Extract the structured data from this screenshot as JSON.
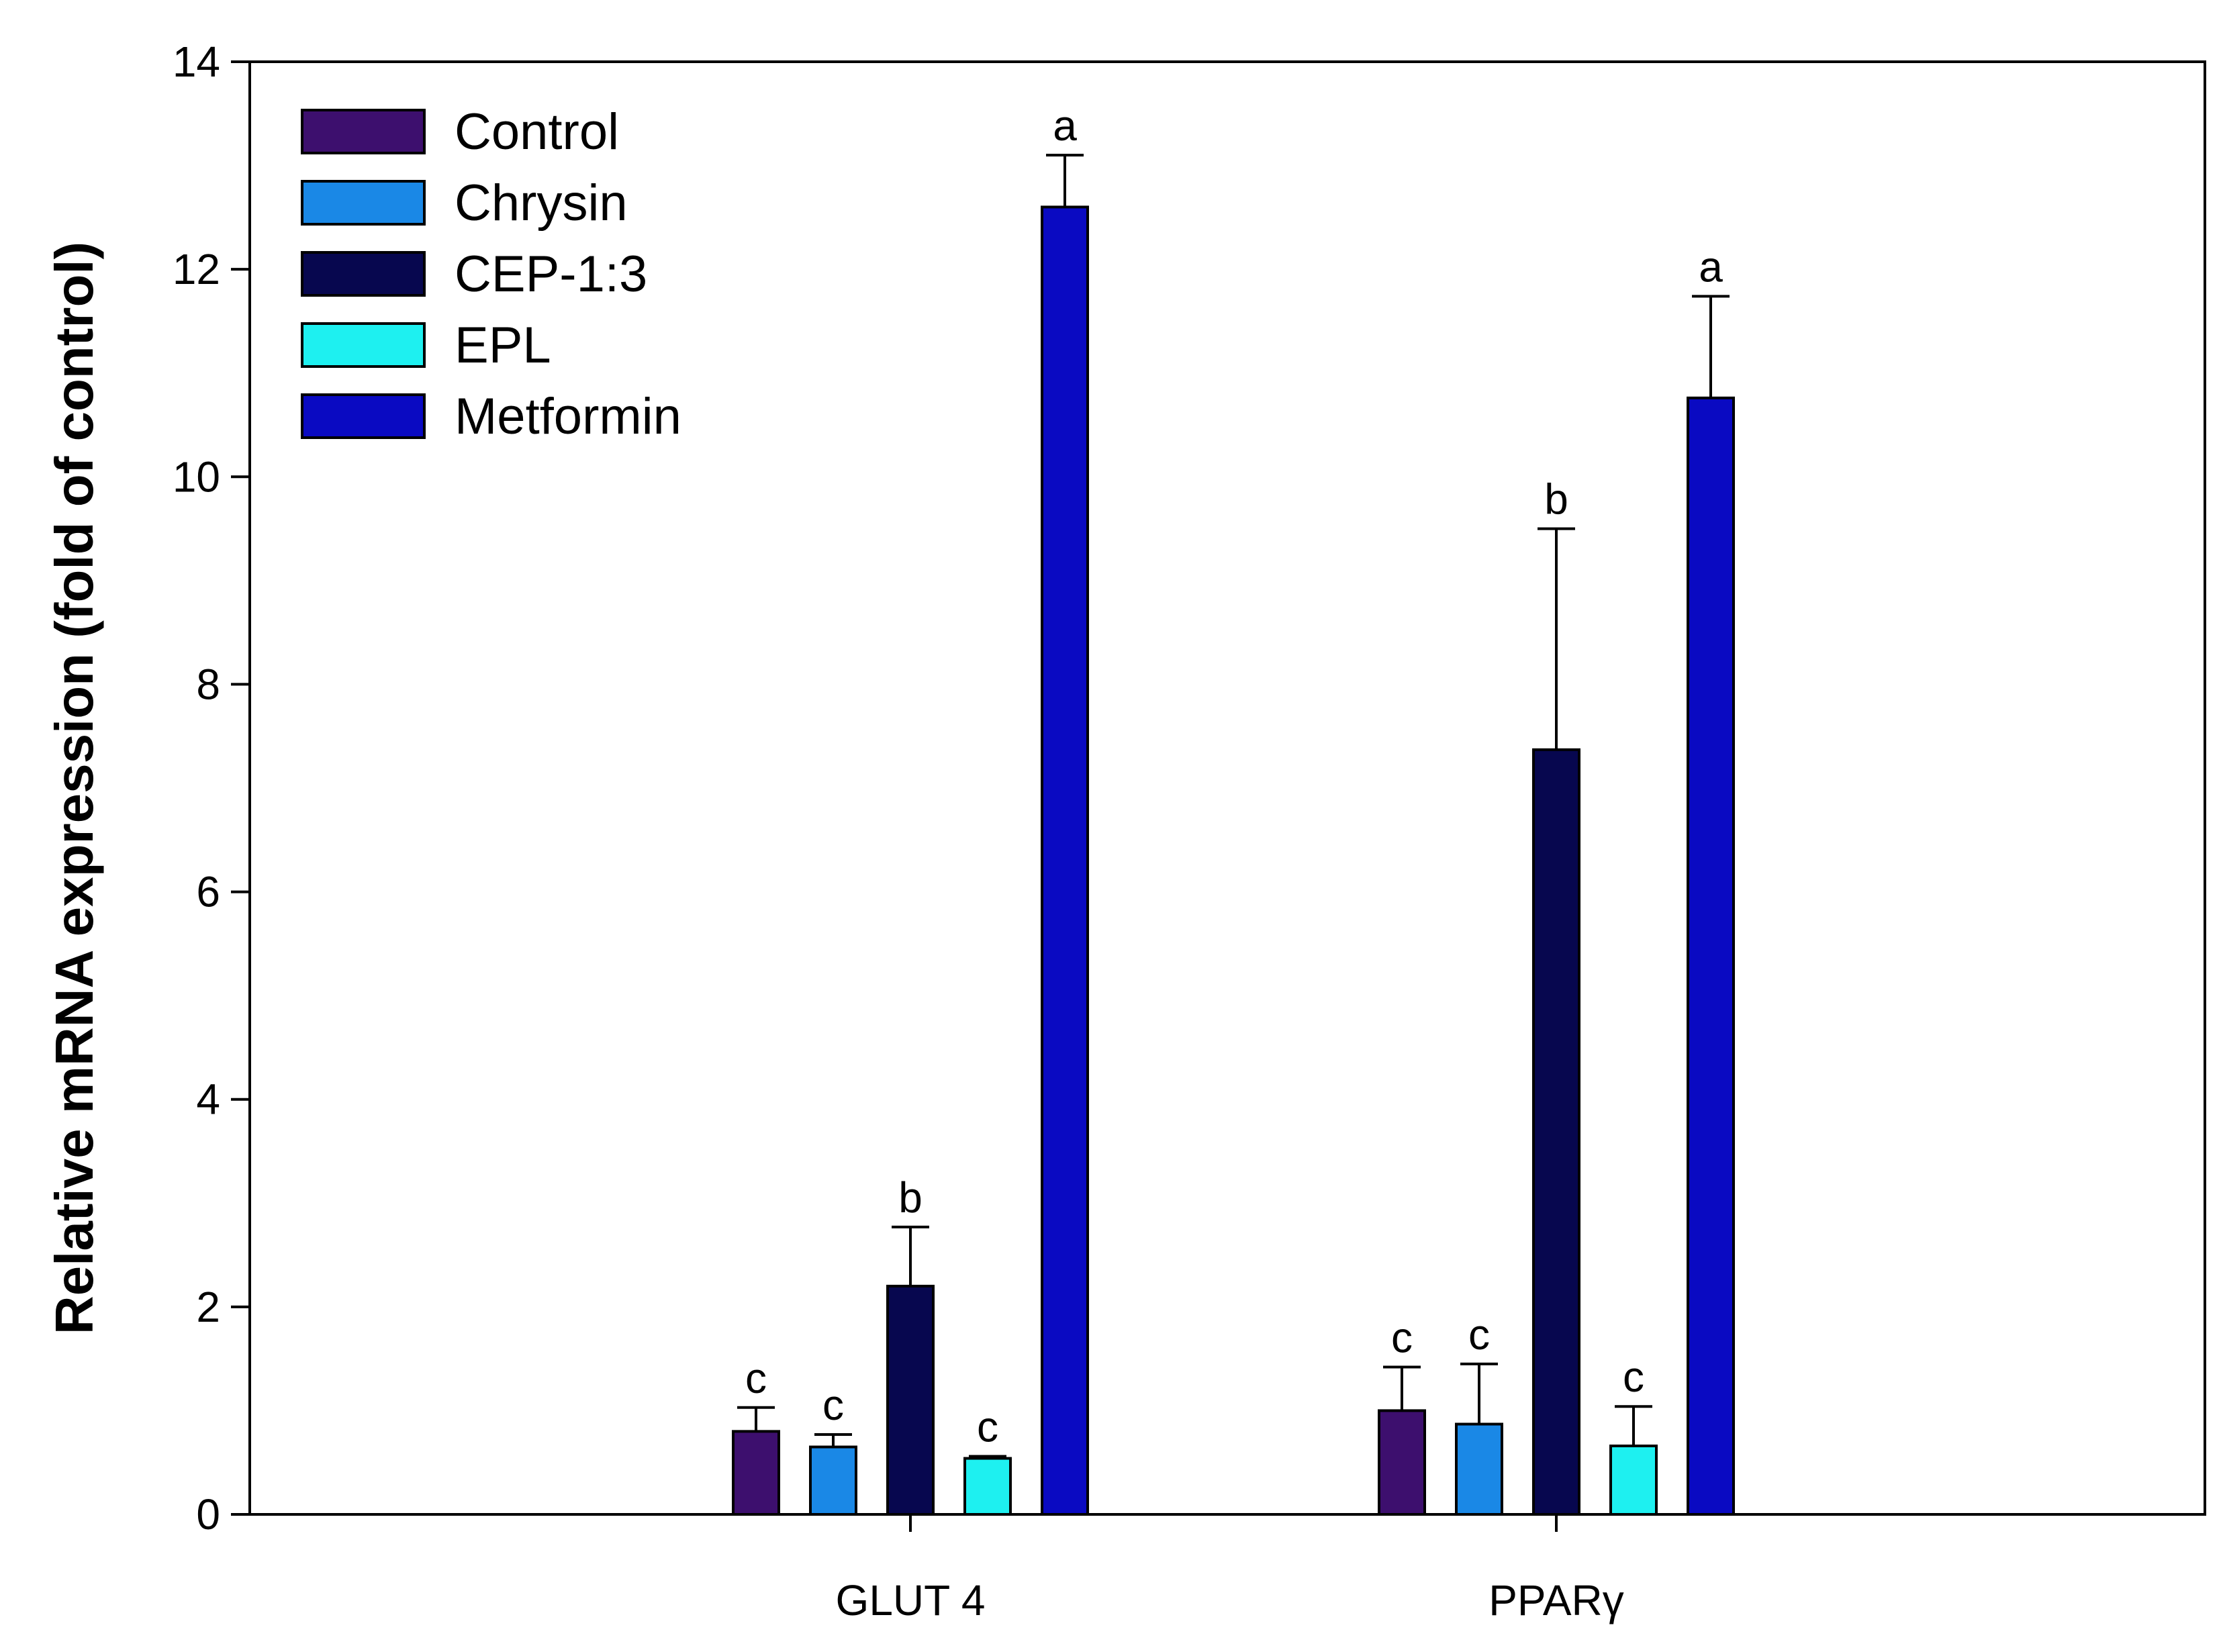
{
  "chart_data": {
    "type": "bar",
    "title": "",
    "xlabel": "",
    "ylabel": "Relative mRNA expression (fold of control)",
    "ylim": [
      0,
      14
    ],
    "yticks": [
      0,
      2,
      4,
      6,
      8,
      10,
      12,
      14
    ],
    "ytick_labels": [
      "0",
      "2",
      "4",
      "6",
      "8",
      "10",
      "12",
      "14"
    ],
    "categories": [
      "GLUT 4",
      "PPARγ"
    ],
    "legend_position": "top-left",
    "series": [
      {
        "name": "Control",
        "color": "#3d0f6e",
        "values": [
          0.8,
          1.0
        ],
        "errors": [
          0.23,
          0.42
        ],
        "labels": [
          "c",
          "c"
        ]
      },
      {
        "name": "Chrysin",
        "color": "#1a88e6",
        "values": [
          0.65,
          0.87
        ],
        "errors": [
          0.12,
          0.58
        ],
        "labels": [
          "c",
          "c"
        ]
      },
      {
        "name": "CEP-1:3",
        "color": "#07074f",
        "values": [
          2.2,
          7.37
        ],
        "errors": [
          0.57,
          2.13
        ],
        "labels": [
          "b",
          "b"
        ]
      },
      {
        "name": "EPL",
        "color": "#1ef0f0",
        "values": [
          0.54,
          0.66
        ],
        "errors": [
          0.02,
          0.38
        ],
        "labels": [
          "c",
          "c"
        ]
      },
      {
        "name": "Metformin",
        "color": "#0a0ac2",
        "values": [
          12.6,
          10.76
        ],
        "errors": [
          0.5,
          0.98
        ],
        "labels": [
          "a",
          "a"
        ]
      }
    ]
  }
}
